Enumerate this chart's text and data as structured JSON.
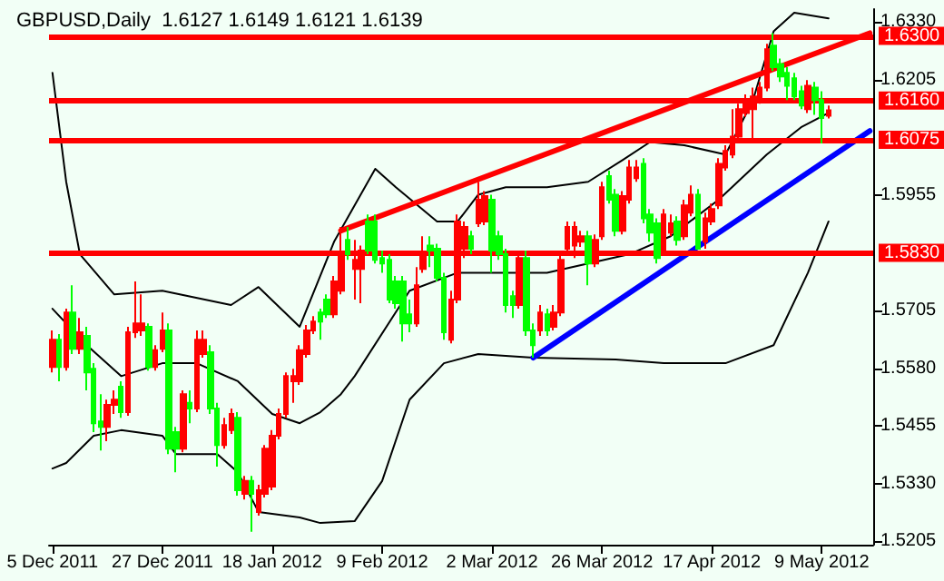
{
  "chart_data": {
    "type": "candlestick",
    "title": "GBPUSD,Daily  1.6127 1.6149 1.6121 1.6139",
    "categories": [
      "5 Dec 2011",
      null,
      null,
      null,
      null,
      null,
      null,
      null,
      null,
      null,
      null,
      null,
      null,
      null,
      null,
      null,
      "27 Dec 2011",
      null,
      null,
      null,
      null,
      null,
      null,
      null,
      null,
      null,
      null,
      null,
      null,
      null,
      null,
      null,
      "18 Jan 2012",
      null,
      null,
      null,
      null,
      null,
      null,
      null,
      null,
      null,
      null,
      null,
      null,
      null,
      null,
      null,
      "9 Feb 2012",
      null,
      null,
      null,
      null,
      null,
      null,
      null,
      null,
      null,
      null,
      null,
      null,
      null,
      null,
      null,
      "2 Mar 2012",
      null,
      null,
      null,
      null,
      null,
      null,
      null,
      null,
      null,
      null,
      null,
      null,
      null,
      null,
      null,
      "26 Mar 2012",
      null,
      null,
      null,
      null,
      null,
      null,
      null,
      null,
      null,
      null,
      null,
      null,
      null,
      null,
      null,
      "17 Apr 2012",
      null,
      null,
      null,
      null,
      null,
      null,
      null,
      null,
      null,
      null,
      null,
      null,
      null,
      null,
      null,
      "9 May 2012",
      null,
      null,
      null,
      null,
      null,
      null,
      null
    ],
    "ohlc": [
      [
        1.5583,
        1.5662,
        1.5571,
        1.5642
      ],
      [
        1.5642,
        1.5654,
        1.5552,
        1.5583
      ],
      [
        1.5583,
        1.5709,
        1.5575,
        1.5701
      ],
      [
        1.5701,
        1.576,
        1.5611,
        1.5622
      ],
      [
        1.5622,
        1.5689,
        1.5611,
        1.5658
      ],
      [
        1.565,
        1.567,
        1.5532,
        1.5571
      ],
      [
        1.5579,
        1.5591,
        1.5442,
        1.5461
      ],
      [
        1.5465,
        1.5524,
        1.5402,
        1.5453
      ],
      [
        1.5453,
        1.5512,
        1.5422,
        1.5501
      ],
      [
        1.5501,
        1.5532,
        1.5481,
        1.5512
      ],
      [
        1.554,
        1.5552,
        1.5473,
        1.5485
      ],
      [
        1.5485,
        1.567,
        1.5477,
        1.5658
      ],
      [
        1.5658,
        1.5768,
        1.5646,
        1.5677
      ],
      [
        1.5662,
        1.574,
        1.565,
        1.5677
      ],
      [
        1.567,
        1.5677,
        1.5575,
        1.5583
      ],
      [
        1.5583,
        1.563,
        1.5575,
        1.5619
      ],
      [
        1.5622,
        1.5701,
        1.5615,
        1.5662
      ],
      [
        1.5662,
        1.5677,
        1.5394,
        1.5406
      ],
      [
        1.5442,
        1.5453,
        1.5355,
        1.5406
      ],
      [
        1.5406,
        1.5532,
        1.5398,
        1.5524
      ],
      [
        1.5505,
        1.5532,
        1.5461,
        1.5493
      ],
      [
        1.5493,
        1.5662,
        1.5485,
        1.5642
      ],
      [
        1.5611,
        1.5662,
        1.5603,
        1.5642
      ],
      [
        1.5615,
        1.563,
        1.5481,
        1.5493
      ],
      [
        1.5493,
        1.5505,
        1.5367,
        1.5414
      ],
      [
        1.5414,
        1.5473,
        1.5406,
        1.5457
      ],
      [
        1.5446,
        1.5493,
        1.5438,
        1.5481
      ],
      [
        1.5473,
        1.5485,
        1.5304,
        1.5316
      ],
      [
        1.5308,
        1.5347,
        1.5296,
        1.5336
      ],
      [
        1.5336,
        1.5347,
        1.5226,
        1.5308
      ],
      [
        1.5269,
        1.5328,
        1.5261,
        1.5316
      ],
      [
        1.5308,
        1.5414,
        1.53,
        1.5406
      ],
      [
        1.5324,
        1.5446,
        1.5316,
        1.5434
      ],
      [
        1.5434,
        1.5493,
        1.5426,
        1.5481
      ],
      [
        1.5481,
        1.5571,
        1.5473,
        1.5563
      ],
      [
        1.5552,
        1.5579,
        1.5505,
        1.5563
      ],
      [
        1.5552,
        1.563,
        1.5544,
        1.5619
      ],
      [
        1.5611,
        1.5674,
        1.5603,
        1.5662
      ],
      [
        1.5662,
        1.5693,
        1.5654,
        1.5681
      ],
      [
        1.5701,
        1.5709,
        1.5642,
        1.5681
      ],
      [
        1.5729,
        1.574,
        1.5689,
        1.5697
      ],
      [
        1.5697,
        1.578,
        1.5689,
        1.5768
      ],
      [
        1.5748,
        1.5886,
        1.574,
        1.5827
      ],
      [
        1.5858,
        1.5886,
        1.5815,
        1.5827
      ],
      [
        1.5795,
        1.5858,
        1.5729,
        1.5815
      ],
      [
        1.5795,
        1.5846,
        1.5721,
        1.5835
      ],
      [
        1.5898,
        1.5913,
        1.5827,
        1.5835
      ],
      [
        1.5898,
        1.5913,
        1.5807,
        1.5815
      ],
      [
        1.5819,
        1.5835,
        1.5787,
        1.5807
      ],
      [
        1.5815,
        1.5827,
        1.5721,
        1.5729
      ],
      [
        1.5768,
        1.578,
        1.5709,
        1.5721
      ],
      [
        1.5768,
        1.578,
        1.5638,
        1.5677
      ],
      [
        1.5697,
        1.5729,
        1.5658,
        1.5677
      ],
      [
        1.5677,
        1.5799,
        1.567,
        1.576
      ],
      [
        1.5795,
        1.5866,
        1.5787,
        1.5827
      ],
      [
        1.5846,
        1.5866,
        1.5799,
        1.5835
      ],
      [
        1.5839,
        1.585,
        1.5768,
        1.5776
      ],
      [
        1.5776,
        1.5787,
        1.5642,
        1.5658
      ],
      [
        1.5642,
        1.5748,
        1.5634,
        1.5729
      ],
      [
        1.5729,
        1.5913,
        1.5721,
        1.5898
      ],
      [
        1.5839,
        1.5898,
        1.5819,
        1.5886
      ],
      [
        1.5866,
        1.5878,
        1.5827,
        1.5839
      ],
      [
        1.5894,
        1.5984,
        1.5886,
        1.5945
      ],
      [
        1.5898,
        1.5964,
        1.589,
        1.5953
      ],
      [
        1.5945,
        1.5956,
        1.5787,
        1.5835
      ],
      [
        1.5866,
        1.5878,
        1.5815,
        1.5827
      ],
      [
        1.5827,
        1.5839,
        1.5701,
        1.5717
      ],
      [
        1.5736,
        1.5748,
        1.5689,
        1.5717
      ],
      [
        1.5717,
        1.5835,
        1.5709,
        1.5819
      ],
      [
        1.5819,
        1.5835,
        1.565,
        1.5662
      ],
      [
        1.5662,
        1.5677,
        1.5603,
        1.563
      ],
      [
        1.5662,
        1.5717,
        1.565,
        1.5701
      ],
      [
        1.5697,
        1.5709,
        1.565,
        1.5662
      ],
      [
        1.567,
        1.5717,
        1.5662,
        1.5701
      ],
      [
        1.5701,
        1.5827,
        1.5693,
        1.5815
      ],
      [
        1.5839,
        1.5898,
        1.5827,
        1.5886
      ],
      [
        1.5846,
        1.5898,
        1.5819,
        1.5886
      ],
      [
        1.5854,
        1.5878,
        1.5843,
        1.5866
      ],
      [
        1.5866,
        1.5878,
        1.576,
        1.5807
      ],
      [
        1.5807,
        1.587,
        1.5799,
        1.5858
      ],
      [
        1.5866,
        1.5984,
        1.5858,
        1.5972
      ],
      [
        1.5996,
        1.6008,
        1.5937,
        1.5945
      ],
      [
        1.5956,
        1.5968,
        1.5866,
        1.5878
      ],
      [
        1.5878,
        1.5964,
        1.587,
        1.5953
      ],
      [
        1.5945,
        1.6031,
        1.5937,
        1.6015
      ],
      [
        1.5992,
        1.6031,
        1.5984,
        1.6015
      ],
      [
        1.6023,
        1.6035,
        1.5894,
        1.5905
      ],
      [
        1.5913,
        1.5925,
        1.5854,
        1.5874
      ],
      [
        1.5894,
        1.5905,
        1.5807,
        1.5819
      ],
      [
        1.5835,
        1.5925,
        1.5827,
        1.5913
      ],
      [
        1.5874,
        1.5913,
        1.5866,
        1.5894
      ],
      [
        1.5898,
        1.5909,
        1.5846,
        1.5858
      ],
      [
        1.5866,
        1.5945,
        1.5858,
        1.5933
      ],
      [
        1.5917,
        1.5976,
        1.5909,
        1.5956
      ],
      [
        1.5956,
        1.5968,
        1.5839,
        1.5839
      ],
      [
        1.5854,
        1.5917,
        1.5839,
        1.5905
      ],
      [
        1.5898,
        1.5937,
        1.589,
        1.5925
      ],
      [
        1.5933,
        1.6035,
        1.5925,
        1.6023
      ],
      [
        1.6015,
        1.6063,
        1.6008,
        1.6051
      ],
      [
        1.6043,
        1.6141,
        1.6035,
        1.6082
      ],
      [
        1.6082,
        1.6153,
        1.6074,
        1.6141
      ],
      [
        1.6133,
        1.6173,
        1.6125,
        1.6153
      ],
      [
        1.6141,
        1.6188,
        1.6074,
        1.6169
      ],
      [
        1.6161,
        1.62,
        1.6153,
        1.6188
      ],
      [
        1.6188,
        1.6283,
        1.618,
        1.6271
      ],
      [
        1.6279,
        1.6306,
        1.6224,
        1.6232
      ],
      [
        1.6239,
        1.6251,
        1.62,
        1.6212
      ],
      [
        1.622,
        1.6232,
        1.6161,
        1.6192
      ],
      [
        1.6208,
        1.622,
        1.6161,
        1.6169
      ],
      [
        1.618,
        1.6192,
        1.6141,
        1.6149
      ],
      [
        1.6141,
        1.6204,
        1.6133,
        1.6192
      ],
      [
        1.6188,
        1.62,
        1.6129,
        1.6161
      ],
      [
        1.6161,
        1.618,
        1.6067,
        1.6122
      ],
      [
        1.6127,
        1.6149,
        1.6121,
        1.6139
      ],
      null,
      null,
      null,
      null,
      null,
      null
    ],
    "colors": [
      "#ff0000",
      "#00ff00",
      "#ff0000",
      "#00ff00",
      "#ff0000",
      "#00ff00",
      "#00ff00",
      "#00ff00",
      "#ff0000",
      "#ff0000",
      "#00ff00",
      "#ff0000",
      "#ff0000",
      "#ff0000",
      "#00ff00",
      "#ff0000",
      "#ff0000",
      "#00ff00",
      "#00ff00",
      "#ff0000",
      "#00ff00",
      "#ff0000",
      "#ff0000",
      "#00ff00",
      "#00ff00",
      "#ff0000",
      "#ff0000",
      "#00ff00",
      "#ff0000",
      "#00ff00",
      "#ff0000",
      "#ff0000",
      "#ff0000",
      "#ff0000",
      "#ff0000",
      "#ff0000",
      "#ff0000",
      "#ff0000",
      "#ff0000",
      "#00ff00",
      "#00ff00",
      "#ff0000",
      "#ff0000",
      "#00ff00",
      "#ff0000",
      "#ff0000",
      "#00ff00",
      "#00ff00",
      "#00ff00",
      "#00ff00",
      "#00ff00",
      "#00ff00",
      "#00ff00",
      "#ff0000",
      "#ff0000",
      "#00ff00",
      "#00ff00",
      "#00ff00",
      "#ff0000",
      "#ff0000",
      "#ff0000",
      "#00ff00",
      "#ff0000",
      "#ff0000",
      "#00ff00",
      "#00ff00",
      "#00ff00",
      "#00ff00",
      "#ff0000",
      "#00ff00",
      "#00ff00",
      "#ff0000",
      "#00ff00",
      "#ff0000",
      "#ff0000",
      "#ff0000",
      "#ff0000",
      "#ff0000",
      "#00ff00",
      "#ff0000",
      "#ff0000",
      "#00ff00",
      "#00ff00",
      "#ff0000",
      "#ff0000",
      "#ff0000",
      "#00ff00",
      "#00ff00",
      "#00ff00",
      "#ff0000",
      "#ff0000",
      "#00ff00",
      "#ff0000",
      "#ff0000",
      "#00ff00",
      "#ff0000",
      "#ff0000",
      "#ff0000",
      "#ff0000",
      "#ff0000",
      "#ff0000",
      "#ff0000",
      "#ff0000",
      "#ff0000",
      "#ff0000",
      "#00ff00",
      "#00ff00",
      "#00ff00",
      "#00ff00",
      "#00ff00",
      "#ff0000",
      "#00ff00",
      "#00ff00",
      "#ff0000",
      null,
      null,
      null,
      null,
      null,
      null
    ],
    "series": [
      {
        "type": "line",
        "color": "#000000",
        "values": [
          1.622,
          null,
          1.5984,
          null,
          1.5827,
          null,
          null,
          null,
          null,
          1.574,
          null,
          null,
          null,
          null,
          null,
          null,
          1.5748,
          null,
          null,
          null,
          null,
          null,
          null,
          null,
          null,
          null,
          1.5717,
          null,
          null,
          null,
          1.5756,
          null,
          null,
          null,
          null,
          null,
          1.567,
          null,
          null,
          null,
          null,
          1.5854,
          null,
          null,
          null,
          null,
          null,
          1.6012,
          null,
          null,
          1.5972,
          null,
          null,
          null,
          null,
          null,
          1.5898,
          null,
          null,
          1.5898,
          null,
          null,
          1.5956,
          null,
          null,
          null,
          1.5972,
          null,
          null,
          null,
          null,
          null,
          1.5972,
          null,
          null,
          null,
          null,
          null,
          1.5984,
          null,
          null,
          null,
          null,
          1.6031,
          null,
          null,
          null,
          1.607,
          null,
          null,
          null,
          null,
          1.6063,
          null,
          null,
          null,
          null,
          null,
          1.6043,
          null,
          null,
          null,
          1.6161,
          null,
          null,
          1.631,
          null,
          null,
          1.635,
          null,
          null,
          null,
          null,
          1.6338,
          null,
          null,
          null,
          null,
          null,
          null
        ]
      },
      {
        "type": "line",
        "color": "#000000",
        "values": [
          1.5709,
          null,
          null,
          null,
          null,
          1.563,
          null,
          null,
          null,
          null,
          1.5563,
          null,
          null,
          null,
          null,
          null,
          1.5591,
          null,
          null,
          null,
          null,
          1.5591,
          null,
          null,
          null,
          null,
          null,
          1.5552,
          null,
          null,
          null,
          null,
          1.5481,
          null,
          null,
          null,
          1.5461,
          null,
          null,
          1.5485,
          null,
          null,
          1.5524,
          null,
          1.5563,
          null,
          null,
          null,
          null,
          null,
          null,
          null,
          1.5748,
          null,
          null,
          null,
          null,
          null,
          null,
          1.5787,
          null,
          null,
          null,
          null,
          null,
          null,
          null,
          null,
          null,
          null,
          null,
          null,
          1.5787,
          null,
          null,
          null,
          null,
          null,
          null,
          null,
          null,
          null,
          null,
          null,
          1.5827,
          null,
          null,
          null,
          null,
          null,
          1.5866,
          null,
          null,
          null,
          null,
          null,
          null,
          1.5945,
          null,
          null,
          null,
          null,
          null,
          null,
          1.6043,
          null,
          null,
          null,
          null,
          1.6102,
          null,
          null,
          null,
          1.6133,
          null,
          null,
          null,
          null,
          null,
          null
        ]
      },
      {
        "type": "line",
        "color": "#000000",
        "values": [
          1.5363,
          null,
          1.5375,
          null,
          null,
          null,
          1.5434,
          null,
          null,
          null,
          1.5446,
          null,
          null,
          null,
          null,
          null,
          1.5434,
          null,
          1.5394,
          null,
          null,
          null,
          null,
          null,
          1.5394,
          null,
          null,
          1.5355,
          null,
          null,
          1.5269,
          null,
          null,
          null,
          null,
          null,
          1.5257,
          null,
          null,
          1.5245,
          null,
          null,
          null,
          null,
          1.5249,
          null,
          null,
          null,
          1.5336,
          null,
          null,
          null,
          1.5512,
          null,
          null,
          null,
          null,
          1.5591,
          null,
          null,
          null,
          null,
          1.5611,
          null,
          null,
          null,
          null,
          null,
          null,
          null,
          1.5603,
          null,
          null,
          null,
          null,
          null,
          null,
          null,
          null,
          null,
          null,
          null,
          1.5599,
          null,
          null,
          null,
          null,
          null,
          null,
          1.5591,
          null,
          null,
          null,
          null,
          null,
          null,
          null,
          null,
          1.5591,
          null,
          null,
          null,
          null,
          null,
          null,
          1.563,
          null,
          null,
          null,
          null,
          1.5787,
          null,
          null,
          1.5898,
          null,
          null,
          null,
          null,
          null,
          null
        ]
      },
      {
        "type": "line",
        "color": "#ff0000",
        "values": [
          null,
          null,
          null,
          null,
          null,
          null,
          null,
          null,
          null,
          null,
          null,
          null,
          null,
          null,
          null,
          null,
          null,
          null,
          null,
          null,
          null,
          null,
          null,
          null,
          null,
          null,
          null,
          null,
          null,
          null,
          null,
          null,
          null,
          null,
          null,
          null,
          null,
          null,
          null,
          null,
          null,
          null,
          1.5878,
          null,
          null,
          null,
          null,
          null,
          null,
          null,
          null,
          null,
          null,
          null,
          null,
          null,
          null,
          null,
          null,
          null,
          null,
          null,
          null,
          null,
          null,
          null,
          null,
          null,
          null,
          null,
          null,
          null,
          null,
          null,
          null,
          null,
          null,
          null,
          null,
          null,
          null,
          null,
          null,
          null,
          null,
          null,
          null,
          null,
          null,
          null,
          null,
          null,
          null,
          null,
          null,
          null,
          null,
          null,
          null,
          null,
          null,
          null,
          null,
          null,
          null,
          null,
          null,
          null,
          null,
          null,
          null,
          null,
          null,
          null,
          null,
          null,
          null,
          null,
          null,
          1.6306
        ]
      },
      {
        "type": "line",
        "color": "#0000ff",
        "values": [
          null,
          null,
          null,
          null,
          null,
          null,
          null,
          null,
          null,
          null,
          null,
          null,
          null,
          null,
          null,
          null,
          null,
          null,
          null,
          null,
          null,
          null,
          null,
          null,
          null,
          null,
          null,
          null,
          null,
          null,
          null,
          null,
          null,
          null,
          null,
          null,
          null,
          null,
          null,
          null,
          null,
          null,
          null,
          null,
          null,
          null,
          null,
          null,
          null,
          null,
          null,
          null,
          null,
          null,
          null,
          null,
          null,
          null,
          null,
          null,
          null,
          null,
          null,
          null,
          null,
          null,
          null,
          null,
          null,
          null,
          1.5603,
          null,
          null,
          null,
          null,
          null,
          null,
          null,
          null,
          null,
          null,
          null,
          null,
          null,
          null,
          null,
          null,
          null,
          null,
          null,
          null,
          null,
          null,
          null,
          null,
          null,
          null,
          null,
          null,
          null,
          null,
          null,
          null,
          null,
          null,
          null,
          null,
          null,
          null,
          null,
          null,
          null,
          null,
          null,
          null,
          null,
          null,
          null,
          null,
          1.6094
        ]
      }
    ],
    "ylim": [
      1.5198,
      1.6358
    ],
    "yticks": [
      {
        "value": 1.633,
        "label": "1.6330"
      },
      {
        "value": 1.6205,
        "label": "1.6205"
      },
      {
        "value": 1.5955,
        "label": "1.5955"
      },
      {
        "value": 1.5705,
        "label": "1.5705"
      },
      {
        "value": 1.558,
        "label": "1.5580"
      },
      {
        "value": 1.5455,
        "label": "1.5455"
      },
      {
        "value": 1.533,
        "label": "1.5330"
      },
      {
        "value": 1.5205,
        "label": "1.5205"
      }
    ],
    "ref_lines": [
      {
        "axis": "y",
        "value": 1.63,
        "label": "1.6300",
        "color": "#ff0000"
      },
      {
        "axis": "y",
        "value": 1.616,
        "label": "1.6160",
        "color": "#ff0000"
      },
      {
        "axis": "y",
        "value": 1.6075,
        "label": "1.6075",
        "color": "#ff0000"
      },
      {
        "axis": "y",
        "value": 1.583,
        "label": "1.5830",
        "color": "#ff0000"
      }
    ]
  }
}
